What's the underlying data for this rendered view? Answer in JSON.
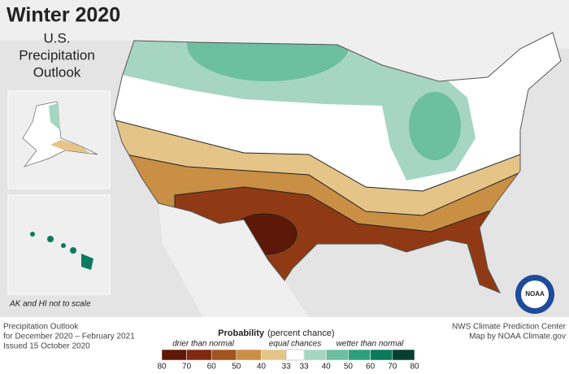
{
  "header": {
    "title": "Winter 2020",
    "subtitle_lines": [
      "U.S.",
      "Precipitation",
      "Outlook"
    ]
  },
  "inset_note": "AK and HI not to scale",
  "issue_info": [
    "Precipitation Outlook",
    "for December 2020 – February 2021",
    "Issued 15 October 2020"
  ],
  "credits": [
    "NWS Climate Prediction Center",
    "Map by NOAA Climate.gov"
  ],
  "logo": "NOAA",
  "legend": {
    "title": "Probability",
    "title_note": "(percent chance)",
    "drier": "drier than normal",
    "equal": "equal chances",
    "wetter": "wetter than normal",
    "drier_ticks": [
      "80",
      "70",
      "60",
      "50",
      "40",
      "33"
    ],
    "wetter_ticks": [
      "33",
      "40",
      "50",
      "60",
      "70",
      "80"
    ],
    "drier_colors": [
      "#5e1808",
      "#7f2a0f",
      "#a0541f",
      "#c98f45",
      "#e5c488"
    ],
    "wetter_colors": [
      "#a6d6c3",
      "#6cbfa0",
      "#2f9e7c",
      "#0b7a5d",
      "#063f30"
    ]
  }
}
